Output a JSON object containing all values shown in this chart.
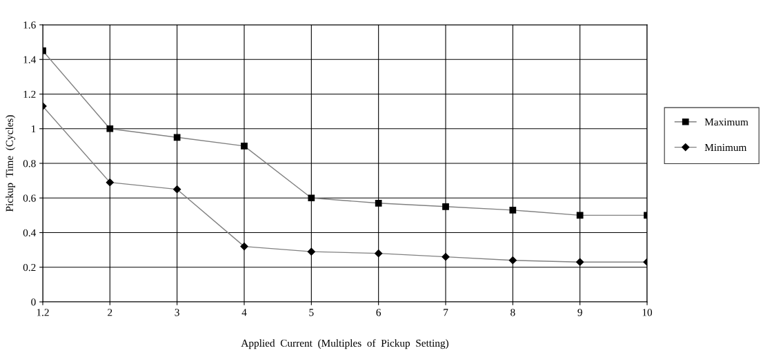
{
  "chart_data": {
    "type": "line",
    "xlabel": "Applied  Current  (Multiples  of  Pickup  Setting)",
    "ylabel": "Pickup  Time  (Cycles)",
    "categories": [
      "1.2",
      "2",
      "3",
      "4",
      "5",
      "6",
      "7",
      "8",
      "9",
      "10"
    ],
    "series": [
      {
        "name": "Maximum",
        "color": "#000000",
        "marker": "square",
        "values": [
          1.45,
          1.0,
          0.95,
          0.9,
          0.6,
          0.57,
          0.55,
          0.53,
          0.5,
          0.5
        ]
      },
      {
        "name": "Minimum",
        "color": "#000000",
        "marker": "diamond",
        "values": [
          1.13,
          0.69,
          0.65,
          0.32,
          0.29,
          0.28,
          0.26,
          0.24,
          0.23,
          0.23
        ]
      }
    ],
    "ylim": [
      0,
      1.6
    ],
    "yticks": [
      0,
      0.2,
      0.4,
      0.6,
      0.8,
      1,
      1.2,
      1.4,
      1.6
    ],
    "grid": true,
    "legend": "right",
    "line_style": "solid"
  }
}
